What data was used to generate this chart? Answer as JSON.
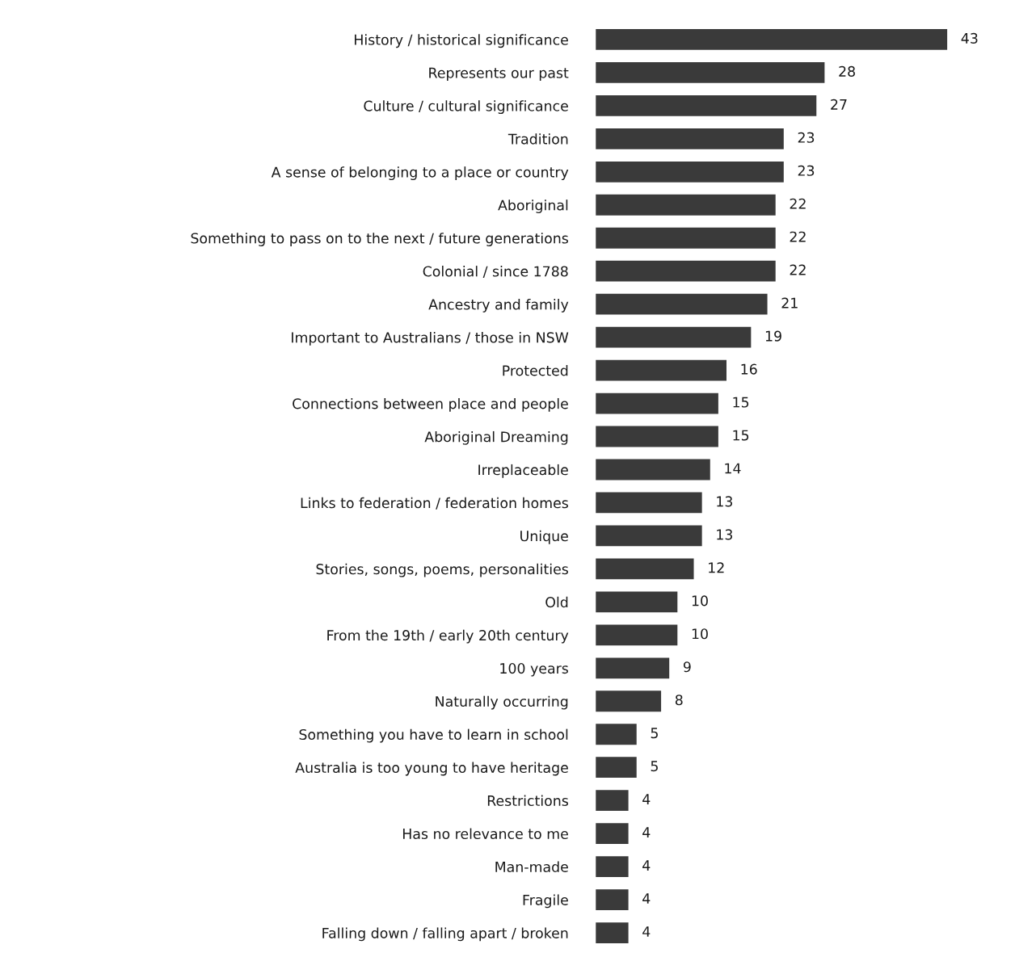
{
  "chart_data": {
    "type": "bar",
    "orientation": "horizontal",
    "data_labels": true,
    "grid": false,
    "legend": false,
    "tick_labels": "y",
    "color": "#3a3a3a",
    "categories": [
      "History / historical significance",
      "Represents our past",
      "Culture / cultural significance",
      "Tradition",
      "A sense of belonging to a place or country",
      "Aboriginal",
      "Something to pass on to the next / future generations",
      "Colonial / since 1788",
      "Ancestry and family",
      "Important to Australians / those in NSW",
      "Protected",
      "Connections between place and people",
      "Aboriginal Dreaming",
      "Irreplaceable",
      "Links to federation / federation homes",
      "Unique",
      "Stories, songs, poems, personalities",
      "Old",
      "From the 19th / early 20th century",
      "100 years",
      "Naturally occurring",
      "Something you have to learn in school",
      "Australia is too young to have heritage",
      "Restrictions",
      "Has no relevance to me",
      "Man-made",
      "Fragile",
      "Falling down / falling apart / broken"
    ],
    "values": [
      43,
      28,
      27,
      23,
      23,
      22,
      22,
      22,
      21,
      19,
      16,
      15,
      15,
      14,
      13,
      13,
      12,
      10,
      10,
      9,
      8,
      5,
      5,
      4,
      4,
      4,
      4,
      4
    ]
  }
}
